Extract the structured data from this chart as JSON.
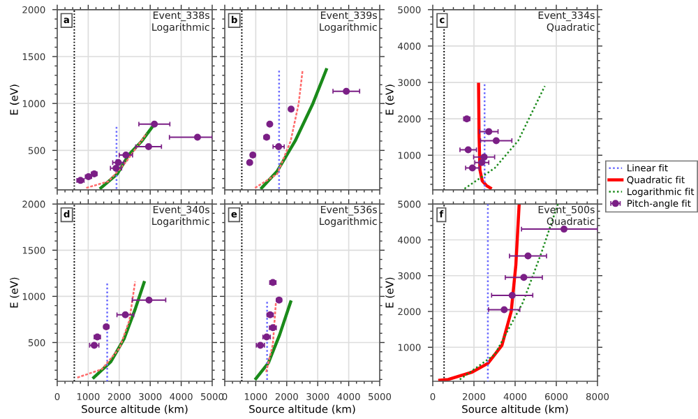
{
  "chart_data": [
    {
      "type": "line",
      "annotations": [
        "a",
        "Event_338s",
        "Logarithmic"
      ],
      "ylabel": "E (eV)",
      "xlim": [
        0,
        5000
      ],
      "xticks": [
        0,
        1000,
        2000,
        3000,
        4000,
        5000
      ],
      "ylim": [
        80,
        2000
      ],
      "yticks": [
        500,
        1000,
        1500,
        2000
      ],
      "grid": true,
      "tick_labels": "y",
      "ref_lines": [
        {
          "axis": "x",
          "value": 550,
          "color": "#000000",
          "line_style": "dotted"
        }
      ],
      "series": [
        {
          "color": "#6b6bff",
          "line_style": "dotted",
          "x": [
            1913,
            1913
          ],
          "values": [
            750,
            80
          ]
        },
        {
          "color": "#ff6b6b",
          "line_style": "dashed",
          "x": [
            935,
            1654,
            2227,
            2664,
            2880
          ],
          "values": [
            100,
            170,
            380,
            580,
            680
          ]
        },
        {
          "color": "#1a8a1a",
          "line_style": "solid",
          "x": [
            1409,
            1940,
            2300,
            2730,
            3134
          ],
          "values": [
            100,
            250,
            450,
            600,
            780
          ]
        },
        {
          "type": "scatter",
          "color": "#7b1f86",
          "marker": "circle",
          "x": [
            750,
            1008,
            1194,
            1897,
            1970,
            2215,
            2948,
            3134,
            4526
          ],
          "values": [
            180,
            220,
            250,
            310,
            370,
            450,
            540,
            780,
            640
          ],
          "xerrors": [
            115,
            100,
            90,
            180,
            180,
            215,
            415,
            500,
            [
              3620,
              5000
            ]
          ]
        }
      ]
    },
    {
      "type": "line",
      "annotations": [
        "b",
        "Event_339s",
        "Logarithmic"
      ],
      "xlim": [
        0,
        5000
      ],
      "xticks": [
        0,
        1000,
        2000,
        3000,
        4000,
        5000
      ],
      "ylim": [
        80,
        2000
      ],
      "yticks": [
        500,
        1000,
        1500,
        2000
      ],
      "grid": true,
      "tick_labels": false,
      "ref_lines": [
        {
          "axis": "x",
          "value": 550,
          "color": "#000000",
          "line_style": "dotted"
        }
      ],
      "series": [
        {
          "color": "#6b6bff",
          "line_style": "dotted",
          "x": [
            1753,
            1753
          ],
          "values": [
            1350,
            80
          ]
        },
        {
          "color": "#ff6b6b",
          "line_style": "dashed",
          "x": [
            977,
            1695,
            2127,
            2385,
            2514
          ],
          "values": [
            100,
            250,
            600,
            1000,
            1360
          ]
        },
        {
          "color": "#1a8a1a",
          "line_style": "solid",
          "x": [
            1193,
            1695,
            2270,
            2845,
            3276
          ],
          "values": [
            100,
            280,
            600,
            1000,
            1360
          ]
        },
        {
          "type": "scatter",
          "color": "#7b1f86",
          "marker": "circle",
          "x": [
            805,
            905,
            1350,
            1452,
            1738,
            2141,
            3922
          ],
          "values": [
            370,
            450,
            640,
            780,
            540,
            940,
            1130
          ],
          "xerrors": [
            60,
            70,
            80,
            60,
            180,
            60,
            430
          ]
        }
      ]
    },
    {
      "type": "line",
      "annotations": [
        "c",
        "Event_334s",
        "Quadratic"
      ],
      "ylabel": "E (eV)",
      "xlim": [
        0,
        8000
      ],
      "xticks": [
        0,
        2000,
        4000,
        6000,
        8000
      ],
      "ylim": [
        50,
        5000
      ],
      "yticks": [
        1000,
        2000,
        3000,
        4000,
        5000
      ],
      "grid": true,
      "tick_labels": "y",
      "legend": "right",
      "ref_lines": [
        {
          "axis": "x",
          "value": 550,
          "color": "#000000",
          "line_style": "dotted"
        }
      ],
      "series": [
        {
          "name": "Linear fit",
          "color": "#6b6bff",
          "line_style": "dotted",
          "x": [
            2517,
            2517
          ],
          "values": [
            2950,
            50
          ]
        },
        {
          "name": "Quadratic fit",
          "color": "#ff0000",
          "line_style": "solid",
          "x": [
            2224,
            2250,
            2290,
            2400,
            2600,
            2800
          ],
          "values": [
            2950,
            1500,
            600,
            300,
            170,
            100
          ]
        },
        {
          "name": "Logarithmic fit",
          "color": "#1a8a1a",
          "line_style": "dotted",
          "x": [
            1542,
            3016,
            4150,
            5442
          ],
          "values": [
            80,
            650,
            1400,
            2900
          ]
        },
        {
          "type": "scatter",
          "name": "Pitch-angle fit",
          "color": "#7b1f86",
          "marker": "circle",
          "x": [
            1653,
            2721,
            3082,
            1721,
            2495,
            2381,
            1925
          ],
          "values": [
            2000,
            1650,
            1400,
            1150,
            950,
            800,
            650
          ],
          "xerrors": [
            150,
            450,
            760,
            400,
            510,
            340,
            330
          ]
        }
      ]
    },
    {
      "type": "line",
      "annotations": [
        "d",
        "Event_340s",
        "Logarithmic"
      ],
      "ylabel": "E (eV)",
      "xlabel": "Source altitude (km)",
      "xlim": [
        0,
        5000
      ],
      "xticks": [
        0,
        1000,
        2000,
        3000,
        4000,
        5000
      ],
      "ylim": [
        80,
        2000
      ],
      "yticks": [
        500,
        1000,
        1500,
        2000
      ],
      "grid": true,
      "ref_lines": [
        {
          "axis": "x",
          "value": 550,
          "color": "#000000",
          "line_style": "dotted"
        }
      ],
      "series": [
        {
          "color": "#6b6bff",
          "line_style": "dotted",
          "x": [
            1612,
            1612
          ],
          "values": [
            1140,
            80
          ]
        },
        {
          "color": "#ff6b6b",
          "line_style": "dashed",
          "x": [
            647,
            1437,
            2011,
            2328,
            2514
          ],
          "values": [
            120,
            210,
            440,
            740,
            1160
          ]
        },
        {
          "color": "#1a8a1a",
          "line_style": "solid",
          "x": [
            1179,
            1726,
            2157,
            2514,
            2802
          ],
          "values": [
            120,
            290,
            540,
            860,
            1150
          ]
        },
        {
          "type": "scatter",
          "color": "#7b1f86",
          "marker": "circle",
          "x": [
            1194,
            1293,
            1582,
            2198,
            2961
          ],
          "values": [
            470,
            560,
            670,
            800,
            960
          ],
          "xerrors": [
            150,
            100,
            80,
            270,
            540
          ]
        }
      ]
    },
    {
      "type": "line",
      "annotations": [
        "e",
        "Event_536s",
        "Logarithmic"
      ],
      "xlabel": "Source altitude (km)",
      "xlim": [
        0,
        5000
      ],
      "xticks": [
        0,
        1000,
        2000,
        3000,
        4000,
        5000
      ],
      "ylim": [
        80,
        2000
      ],
      "yticks": [
        500,
        1000,
        1500,
        2000
      ],
      "grid": true,
      "tick_labels": "x",
      "ref_lines": [
        {
          "axis": "x",
          "value": 550,
          "color": "#000000",
          "line_style": "dotted"
        }
      ],
      "series": [
        {
          "color": "#6b6bff",
          "line_style": "dotted",
          "x": [
            1366,
            1366
          ],
          "values": [
            940,
            80
          ]
        },
        {
          "color": "#ff6b6b",
          "line_style": "dashed",
          "x": [
            1336,
            1552,
            1652
          ],
          "values": [
            180,
            480,
            940
          ]
        },
        {
          "color": "#1a8a1a",
          "line_style": "solid",
          "x": [
            1006,
            1408,
            1767,
            2126
          ],
          "values": [
            110,
            280,
            580,
            940
          ]
        },
        {
          "type": "scatter",
          "color": "#7b1f86",
          "marker": "circle",
          "x": [
            1150,
            1351,
            1552,
            1466,
            1753,
            1552
          ],
          "values": [
            470,
            560,
            660,
            800,
            960,
            1150
          ],
          "xerrors": [
            130,
            120,
            110,
            100,
            80,
            100
          ]
        }
      ]
    },
    {
      "type": "line",
      "annotations": [
        "f",
        "Event_500s",
        "Quadratic"
      ],
      "ylabel": "E (eV)",
      "xlabel": "Source altitude (km)",
      "xlim": [
        0,
        8000
      ],
      "xticks": [
        0,
        2000,
        4000,
        6000,
        8000
      ],
      "ylim": [
        50,
        5000
      ],
      "yticks": [
        1000,
        2000,
        3000,
        4000,
        5000
      ],
      "grid": true,
      "ref_lines": [
        {
          "axis": "x",
          "value": 550,
          "color": "#000000",
          "line_style": "dotted"
        }
      ],
      "series": [
        {
          "color": "#6b6bff",
          "line_style": "dotted",
          "x": [
            2676,
            2676
          ],
          "values": [
            5000,
            50
          ]
        },
        {
          "color": "#ff0000",
          "line_style": "solid",
          "x": [
            340,
            748,
            1884,
            2676,
            3357,
            3810,
            4036,
            4197
          ],
          "values": [
            80,
            100,
            300,
            550,
            1050,
            2000,
            3300,
            5000
          ]
        },
        {
          "color": "#1a8a1a",
          "line_style": "dotted",
          "x": [
            1313,
            3016,
            4376,
            5283,
            6077
          ],
          "values": [
            100,
            800,
            2250,
            3650,
            5000
          ]
        },
        {
          "type": "scatter",
          "color": "#7b1f86",
          "marker": "circle",
          "x": [
            6374,
            4626,
            4422,
            3857,
            3469
          ],
          "values": [
            4300,
            3550,
            2950,
            2450,
            2050
          ],
          "xerrors": [
            [
              4310,
              8000
            ],
            900,
            900,
            1000,
            760
          ]
        }
      ]
    }
  ]
}
